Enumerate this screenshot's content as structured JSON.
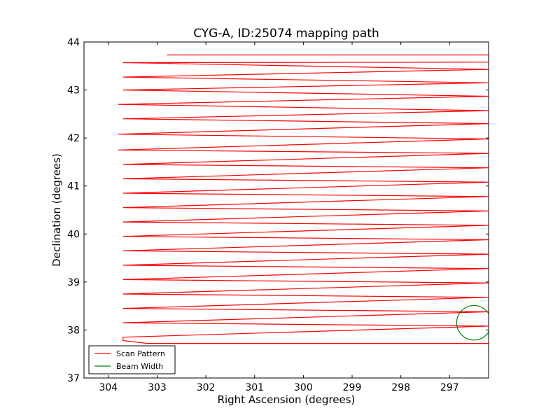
{
  "chart_data": {
    "type": "line",
    "title": "CYG-A, ID:25074 mapping path",
    "xlabel": "Right Ascension (degrees)",
    "ylabel": "Declination (degrees)",
    "xlim": [
      304.5,
      296.2
    ],
    "ylim": [
      37,
      44
    ],
    "x_reversed": true,
    "xticks": [
      304,
      303,
      302,
      301,
      300,
      299,
      298,
      297
    ],
    "yticks": [
      37,
      38,
      39,
      40,
      41,
      42,
      43,
      44
    ],
    "grid": false,
    "legend_position": "lower-left",
    "scan_pattern": {
      "description": "back-and-forth raster; each row = [left RA, right RA, Dec at left end, Dec at right end]",
      "rows": [
        [
          302.8,
          296.2,
          43.73,
          43.73
        ],
        [
          303.7,
          296.2,
          43.57,
          43.58
        ],
        [
          303.7,
          296.2,
          43.27,
          43.43
        ],
        [
          303.7,
          296.2,
          43.0,
          43.15
        ],
        [
          303.8,
          296.2,
          42.7,
          42.87
        ],
        [
          303.7,
          296.2,
          42.4,
          42.57
        ],
        [
          303.8,
          296.2,
          42.08,
          42.3
        ],
        [
          303.8,
          296.2,
          41.75,
          41.98
        ],
        [
          303.7,
          296.2,
          41.45,
          41.68
        ],
        [
          303.7,
          296.2,
          41.15,
          41.38
        ],
        [
          303.7,
          296.2,
          40.85,
          41.08
        ],
        [
          303.7,
          296.2,
          40.55,
          40.78
        ],
        [
          303.7,
          296.2,
          40.25,
          40.48
        ],
        [
          303.7,
          296.2,
          39.95,
          40.18
        ],
        [
          303.7,
          296.2,
          39.65,
          39.88
        ],
        [
          303.7,
          296.2,
          39.35,
          39.58
        ],
        [
          303.7,
          296.2,
          39.05,
          39.28
        ],
        [
          303.7,
          296.2,
          38.75,
          38.98
        ],
        [
          303.7,
          296.2,
          38.45,
          38.68
        ],
        [
          303.7,
          296.2,
          38.15,
          38.38
        ],
        [
          303.7,
          296.2,
          37.85,
          38.08
        ]
      ],
      "final_row": [
        303.2,
        296.2,
        37.72,
        37.72
      ],
      "color": "#ff0000"
    },
    "beam": {
      "center_ra": 296.5,
      "center_dec": 38.15,
      "radius_deg": 0.36,
      "color": "#008000"
    },
    "series": [
      {
        "name": "Scan Pattern",
        "color": "#ff0000"
      },
      {
        "name": "Beam Width",
        "color": "#008000"
      }
    ]
  }
}
